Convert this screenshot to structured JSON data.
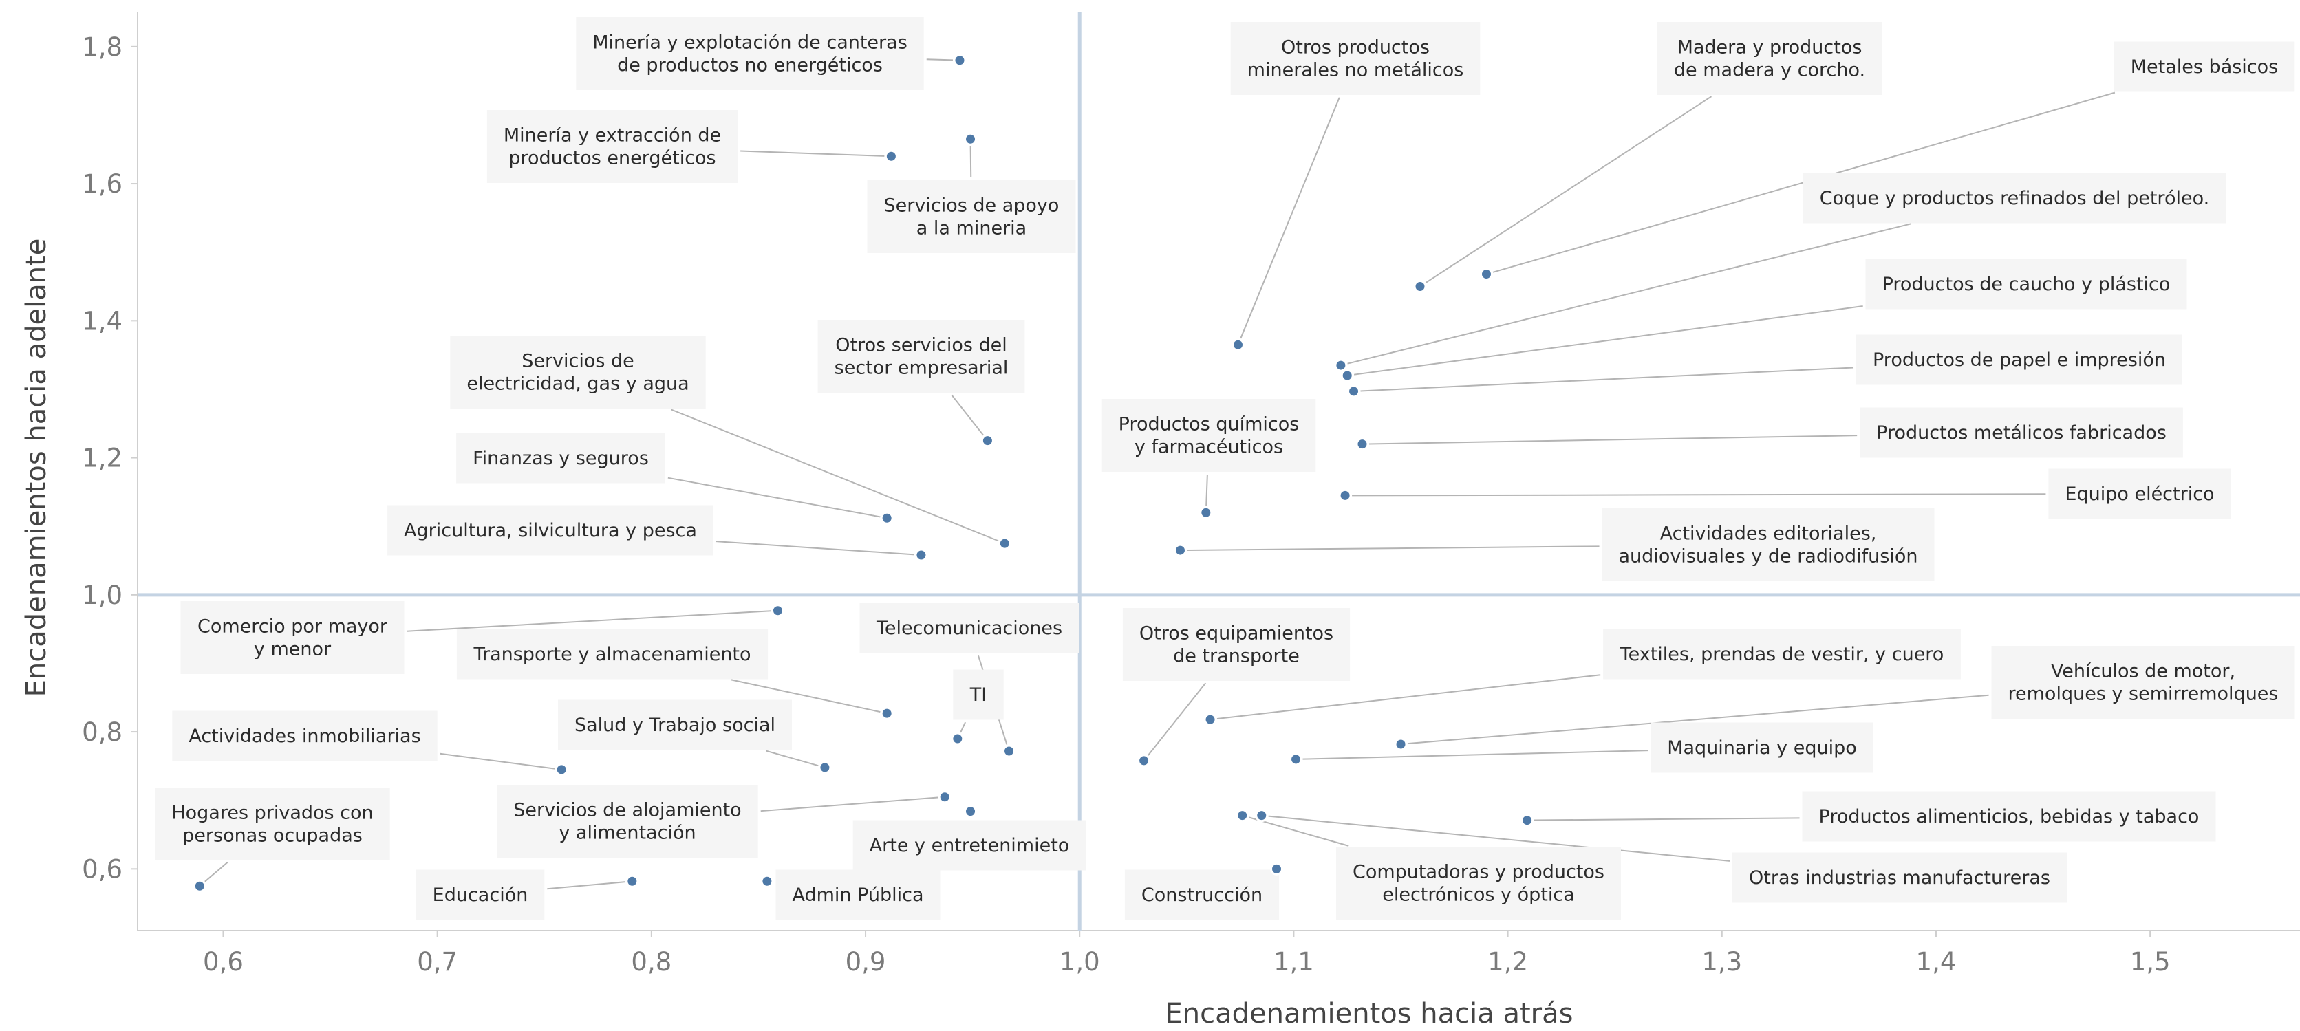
{
  "chart_data": {
    "type": "scatter",
    "xlabel": "Encadenamientos hacia atrás",
    "ylabel": "Encadenamientos hacia adelante",
    "xlim": [
      0.56,
      1.57
    ],
    "ylim": [
      0.51,
      1.85
    ],
    "x_ticks": [
      "0,6",
      "0,7",
      "0,8",
      "0,9",
      "1,0",
      "1,1",
      "1,2",
      "1,3",
      "1,4",
      "1,5"
    ],
    "y_ticks": [
      "0,6",
      "0,8",
      "1,0",
      "1,2",
      "1,4",
      "1,6",
      "1,8"
    ],
    "reference_lines": {
      "x": 1.0,
      "y": 1.0
    },
    "colors": {
      "point": "#4e79a7",
      "reference": "#c4d3e3"
    },
    "points": [
      {
        "label": "Minería y explotación de canteras\nde productos no energéticos",
        "x": 0.944,
        "y": 1.78
      },
      {
        "label": "Minería y extracción de\nproductos energéticos",
        "x": 0.912,
        "y": 1.64
      },
      {
        "label": "Servicios de apoyo\na la mineria",
        "x": 0.949,
        "y": 1.665
      },
      {
        "label": "Otros servicios del\nsector empresarial",
        "x": 0.957,
        "y": 1.225
      },
      {
        "label": "Servicios de\nelectricidad, gas y agua",
        "x": 0.965,
        "y": 1.075
      },
      {
        "label": "Finanzas y seguros",
        "x": 0.91,
        "y": 1.112
      },
      {
        "label": "Agricultura, silvicultura y pesca",
        "x": 0.926,
        "y": 1.058
      },
      {
        "label": "Comercio por mayor\ny menor",
        "x": 0.859,
        "y": 0.977
      },
      {
        "label": "Transporte y almacenamiento",
        "x": 0.91,
        "y": 0.827
      },
      {
        "label": "Telecomunicaciones",
        "x": 0.967,
        "y": 0.772
      },
      {
        "label": "TI",
        "x": 0.943,
        "y": 0.79
      },
      {
        "label": "Actividades inmobiliarias",
        "x": 0.758,
        "y": 0.745
      },
      {
        "label": "Salud y Trabajo social",
        "x": 0.881,
        "y": 0.748
      },
      {
        "label": "Servicios de alojamiento\ny alimentación",
        "x": 0.937,
        "y": 0.705
      },
      {
        "label": "Arte y entretenimieto",
        "x": 0.949,
        "y": 0.684
      },
      {
        "label": "Hogares privados con\npersonas ocupadas",
        "x": 0.589,
        "y": 0.575
      },
      {
        "label": "Educación",
        "x": 0.791,
        "y": 0.582
      },
      {
        "label": "Admin Pública",
        "x": 0.854,
        "y": 0.582
      },
      {
        "label": "Otros productos\nminerales no metálicos",
        "x": 1.074,
        "y": 1.365
      },
      {
        "label": "Madera y productos\nde madera y corcho.",
        "x": 1.159,
        "y": 1.45
      },
      {
        "label": "Metales básicos",
        "x": 1.19,
        "y": 1.468
      },
      {
        "label": "Coque y productos refinados del petróleo.",
        "x": 1.122,
        "y": 1.335
      },
      {
        "label": "Productos de caucho y plástico",
        "x": 1.125,
        "y": 1.32
      },
      {
        "label": "Productos de papel e impresión",
        "x": 1.128,
        "y": 1.297
      },
      {
        "label": "Productos metálicos fabricados",
        "x": 1.132,
        "y": 1.22
      },
      {
        "label": "Productos químicos\ny farmacéuticos",
        "x": 1.059,
        "y": 1.12
      },
      {
        "label": "Equipo eléctrico",
        "x": 1.124,
        "y": 1.145
      },
      {
        "label": "Actividades editoriales,\naudiovisuales y de radiodifusión",
        "x": 1.047,
        "y": 1.065
      },
      {
        "label": "Otros equipamientos\nde transporte",
        "x": 1.03,
        "y": 0.758
      },
      {
        "label": "Textiles, prendas de vestir, y cuero",
        "x": 1.061,
        "y": 0.818
      },
      {
        "label": "Vehículos de motor,\nremolques y semirremolques",
        "x": 1.15,
        "y": 0.782
      },
      {
        "label": "Maquinaria y equipo",
        "x": 1.101,
        "y": 0.76
      },
      {
        "label": "Productos alimenticios, bebidas y tabaco",
        "x": 1.209,
        "y": 0.671
      },
      {
        "label": "Otras industrias manufactureras",
        "x": 1.085,
        "y": 0.678
      },
      {
        "label": "Computadoras y productos\nelectrónicos y óptica",
        "x": 1.076,
        "y": 0.678
      },
      {
        "label": "Construcción",
        "x": 1.092,
        "y": 0.6
      }
    ]
  }
}
